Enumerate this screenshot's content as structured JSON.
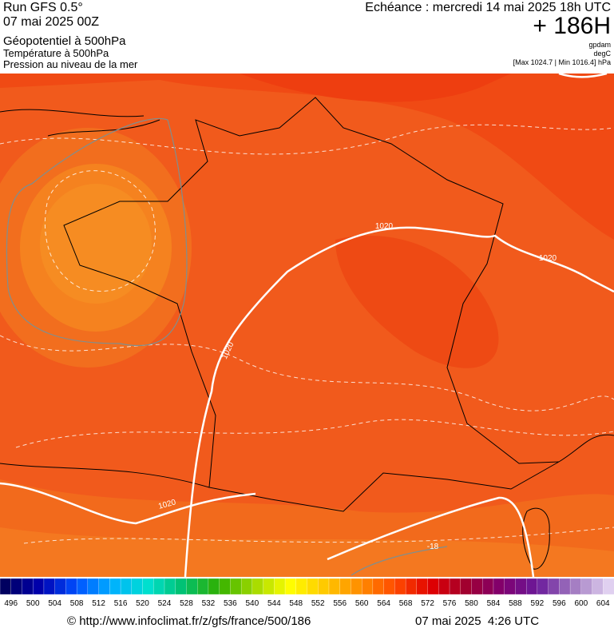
{
  "header": {
    "run": "Run GFS 0.5°",
    "date": "07 mai 2025 00Z",
    "layers": [
      "Géopotentiel à 500hPa",
      "Température à 500hPa",
      "Pression au niveau de la mer"
    ],
    "forecast": "Echéance : mercredi 14 mai 2025 18h UTC",
    "lead": "+ 186H",
    "units": [
      "gpdam",
      "degC"
    ],
    "range": "[Max 1024.7 | Min 1016.4] hPa"
  },
  "map": {
    "contour_labels": [
      "1020",
      "1020",
      "1020",
      "1020"
    ],
    "isotherm_label": "-18"
  },
  "colorbar": {
    "ticks": [
      496,
      500,
      504,
      508,
      512,
      516,
      520,
      524,
      528,
      532,
      536,
      540,
      544,
      548,
      552,
      556,
      560,
      564,
      568,
      572,
      576,
      580,
      584,
      588,
      592,
      596,
      600,
      604
    ]
  },
  "footer": {
    "source": "© http://www.infoclimat.fr/z/gfs/france/500/186",
    "timestamp": "07 mai 2025  4:26 UTC"
  }
}
